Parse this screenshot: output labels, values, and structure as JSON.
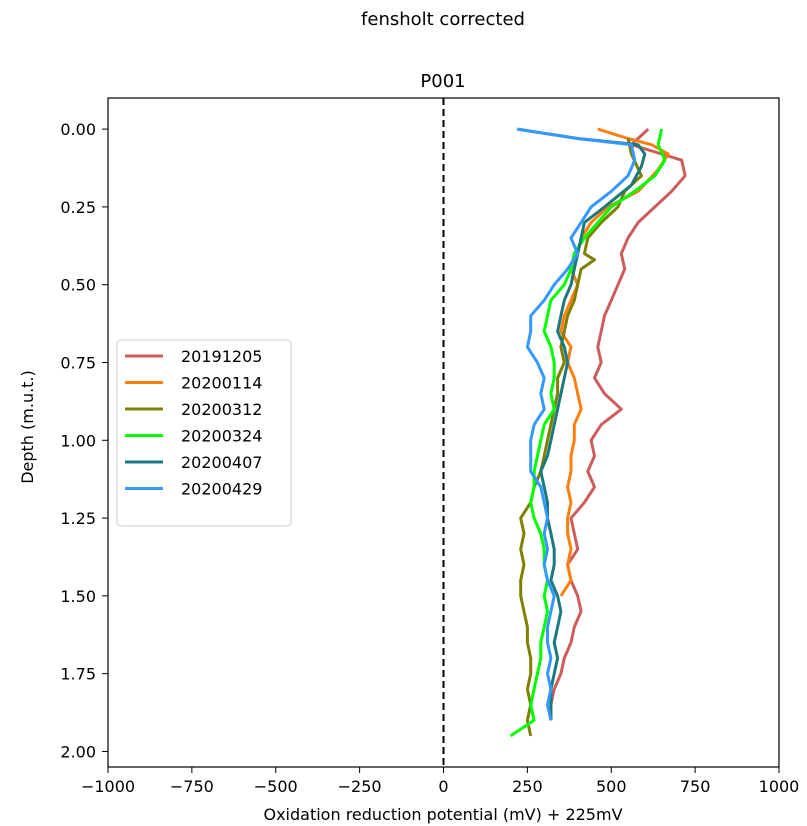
{
  "figure": {
    "suptitle": "fensholt corrected"
  },
  "chart_data": {
    "type": "line",
    "title": "P001",
    "xlabel": "Oxidation reduction potential (mV) + 225mV",
    "ylabel": "Depth (m.u.t.)",
    "xlim": [
      -1000,
      1000
    ],
    "ylim": [
      2.05,
      -0.1
    ],
    "y_inverted": true,
    "xticks": [
      -1000,
      -750,
      -500,
      -250,
      0,
      250,
      500,
      750,
      1000
    ],
    "xtick_labels": [
      "−1000",
      "−750",
      "−500",
      "−250",
      "0",
      "250",
      "500",
      "750",
      "1000"
    ],
    "yticks": [
      0.0,
      0.25,
      0.5,
      0.75,
      1.0,
      1.25,
      1.5,
      1.75,
      2.0
    ],
    "ytick_labels": [
      "0.00",
      "0.25",
      "0.50",
      "0.75",
      "1.00",
      "1.25",
      "1.50",
      "1.75",
      "2.00"
    ],
    "grid": false,
    "legend_position": "center-left",
    "reference_line": {
      "x": 0,
      "style": "dashed",
      "color": "#000000"
    },
    "series": [
      {
        "name": "20191205",
        "color": "#cd5c5c",
        "points": [
          [
            610,
            0.0
          ],
          [
            560,
            0.05
          ],
          [
            650,
            0.08
          ],
          [
            710,
            0.1
          ],
          [
            720,
            0.15
          ],
          [
            680,
            0.2
          ],
          [
            630,
            0.25
          ],
          [
            580,
            0.3
          ],
          [
            550,
            0.35
          ],
          [
            530,
            0.4
          ],
          [
            540,
            0.45
          ],
          [
            520,
            0.5
          ],
          [
            500,
            0.55
          ],
          [
            480,
            0.6
          ],
          [
            470,
            0.65
          ],
          [
            460,
            0.7
          ],
          [
            470,
            0.75
          ],
          [
            450,
            0.8
          ],
          [
            480,
            0.85
          ],
          [
            530,
            0.9
          ],
          [
            470,
            0.95
          ],
          [
            440,
            1.0
          ],
          [
            450,
            1.05
          ],
          [
            430,
            1.1
          ],
          [
            450,
            1.15
          ],
          [
            420,
            1.2
          ],
          [
            380,
            1.25
          ],
          [
            390,
            1.3
          ],
          [
            400,
            1.35
          ],
          [
            370,
            1.4
          ],
          [
            380,
            1.45
          ],
          [
            400,
            1.5
          ],
          [
            410,
            1.55
          ],
          [
            390,
            1.6
          ],
          [
            380,
            1.65
          ],
          [
            360,
            1.7
          ],
          [
            350,
            1.75
          ],
          [
            330,
            1.8
          ],
          [
            320,
            1.85
          ],
          [
            320,
            1.9
          ]
        ]
      },
      {
        "name": "20200114",
        "color": "#ff7f0e",
        "points": [
          [
            460,
            0.0
          ],
          [
            550,
            0.03
          ],
          [
            620,
            0.05
          ],
          [
            670,
            0.08
          ],
          [
            640,
            0.13
          ],
          [
            580,
            0.2
          ],
          [
            490,
            0.25
          ],
          [
            440,
            0.3
          ],
          [
            410,
            0.35
          ],
          [
            400,
            0.4
          ],
          [
            380,
            0.45
          ],
          [
            400,
            0.5
          ],
          [
            380,
            0.55
          ],
          [
            360,
            0.6
          ],
          [
            350,
            0.65
          ],
          [
            380,
            0.7
          ],
          [
            370,
            0.75
          ],
          [
            390,
            0.8
          ],
          [
            400,
            0.85
          ],
          [
            410,
            0.9
          ],
          [
            390,
            0.95
          ],
          [
            390,
            1.0
          ],
          [
            380,
            1.05
          ],
          [
            380,
            1.1
          ],
          [
            370,
            1.15
          ],
          [
            380,
            1.2
          ],
          [
            370,
            1.25
          ],
          [
            370,
            1.3
          ],
          [
            380,
            1.35
          ],
          [
            370,
            1.4
          ],
          [
            380,
            1.45
          ],
          [
            350,
            1.5
          ]
        ]
      },
      {
        "name": "20200312",
        "color": "#808000",
        "points": [
          [
            550,
            0.03
          ],
          [
            560,
            0.08
          ],
          [
            590,
            0.15
          ],
          [
            540,
            0.2
          ],
          [
            520,
            0.25
          ],
          [
            470,
            0.3
          ],
          [
            430,
            0.35
          ],
          [
            420,
            0.4
          ],
          [
            450,
            0.42
          ],
          [
            410,
            0.45
          ],
          [
            400,
            0.5
          ],
          [
            390,
            0.55
          ],
          [
            370,
            0.6
          ],
          [
            360,
            0.65
          ],
          [
            350,
            0.7
          ],
          [
            360,
            0.75
          ],
          [
            340,
            0.8
          ],
          [
            340,
            0.85
          ],
          [
            330,
            0.9
          ],
          [
            320,
            0.95
          ],
          [
            310,
            1.0
          ],
          [
            300,
            1.05
          ],
          [
            290,
            1.1
          ],
          [
            270,
            1.15
          ],
          [
            260,
            1.2
          ],
          [
            230,
            1.25
          ],
          [
            240,
            1.3
          ],
          [
            230,
            1.35
          ],
          [
            240,
            1.4
          ],
          [
            230,
            1.45
          ],
          [
            230,
            1.5
          ],
          [
            240,
            1.55
          ],
          [
            250,
            1.6
          ],
          [
            250,
            1.65
          ],
          [
            260,
            1.7
          ],
          [
            260,
            1.75
          ],
          [
            250,
            1.8
          ],
          [
            260,
            1.85
          ],
          [
            250,
            1.9
          ],
          [
            260,
            1.95
          ]
        ]
      },
      {
        "name": "20200324",
        "color": "#00ff00",
        "points": [
          [
            650,
            0.0
          ],
          [
            640,
            0.05
          ],
          [
            660,
            0.1
          ],
          [
            630,
            0.15
          ],
          [
            570,
            0.2
          ],
          [
            500,
            0.25
          ],
          [
            460,
            0.3
          ],
          [
            420,
            0.35
          ],
          [
            390,
            0.4
          ],
          [
            380,
            0.45
          ],
          [
            360,
            0.5
          ],
          [
            320,
            0.55
          ],
          [
            310,
            0.6
          ],
          [
            300,
            0.65
          ],
          [
            320,
            0.7
          ],
          [
            330,
            0.75
          ],
          [
            330,
            0.8
          ],
          [
            320,
            0.85
          ],
          [
            330,
            0.9
          ],
          [
            300,
            0.95
          ],
          [
            290,
            1.0
          ],
          [
            280,
            1.05
          ],
          [
            270,
            1.1
          ],
          [
            270,
            1.15
          ],
          [
            260,
            1.2
          ],
          [
            270,
            1.25
          ],
          [
            290,
            1.3
          ],
          [
            300,
            1.35
          ],
          [
            300,
            1.4
          ],
          [
            310,
            1.45
          ],
          [
            300,
            1.5
          ],
          [
            310,
            1.55
          ],
          [
            300,
            1.6
          ],
          [
            290,
            1.65
          ],
          [
            290,
            1.7
          ],
          [
            280,
            1.75
          ],
          [
            270,
            1.8
          ],
          [
            260,
            1.85
          ],
          [
            270,
            1.9
          ],
          [
            200,
            1.95
          ]
        ]
      },
      {
        "name": "20200407",
        "color": "#1a7a80",
        "points": [
          [
            220,
            0.0
          ],
          [
            400,
            0.03
          ],
          [
            580,
            0.05
          ],
          [
            600,
            0.08
          ],
          [
            590,
            0.12
          ],
          [
            560,
            0.18
          ],
          [
            480,
            0.25
          ],
          [
            420,
            0.3
          ],
          [
            410,
            0.35
          ],
          [
            400,
            0.4
          ],
          [
            390,
            0.45
          ],
          [
            380,
            0.5
          ],
          [
            360,
            0.55
          ],
          [
            350,
            0.6
          ],
          [
            340,
            0.65
          ],
          [
            360,
            0.7
          ],
          [
            370,
            0.75
          ],
          [
            360,
            0.8
          ],
          [
            350,
            0.85
          ],
          [
            340,
            0.9
          ],
          [
            330,
            0.95
          ],
          [
            320,
            1.0
          ],
          [
            310,
            1.05
          ],
          [
            290,
            1.1
          ],
          [
            300,
            1.15
          ],
          [
            310,
            1.2
          ],
          [
            310,
            1.25
          ],
          [
            320,
            1.3
          ],
          [
            330,
            1.35
          ],
          [
            330,
            1.4
          ],
          [
            320,
            1.45
          ],
          [
            340,
            1.5
          ],
          [
            350,
            1.55
          ],
          [
            340,
            1.6
          ],
          [
            330,
            1.65
          ],
          [
            340,
            1.7
          ],
          [
            330,
            1.75
          ],
          [
            320,
            1.8
          ],
          [
            320,
            1.85
          ],
          [
            320,
            1.9
          ]
        ]
      },
      {
        "name": "20200429",
        "color": "#3399ff",
        "points": [
          [
            220,
            0.0
          ],
          [
            400,
            0.03
          ],
          [
            560,
            0.05
          ],
          [
            570,
            0.1
          ],
          [
            550,
            0.15
          ],
          [
            500,
            0.2
          ],
          [
            440,
            0.25
          ],
          [
            410,
            0.3
          ],
          [
            380,
            0.35
          ],
          [
            400,
            0.4
          ],
          [
            370,
            0.45
          ],
          [
            330,
            0.5
          ],
          [
            300,
            0.55
          ],
          [
            260,
            0.6
          ],
          [
            260,
            0.65
          ],
          [
            250,
            0.7
          ],
          [
            280,
            0.75
          ],
          [
            300,
            0.8
          ],
          [
            290,
            0.85
          ],
          [
            300,
            0.9
          ],
          [
            270,
            0.95
          ],
          [
            260,
            1.0
          ],
          [
            260,
            1.05
          ],
          [
            260,
            1.1
          ],
          [
            290,
            1.15
          ],
          [
            300,
            1.2
          ],
          [
            310,
            1.25
          ],
          [
            300,
            1.3
          ],
          [
            310,
            1.35
          ],
          [
            300,
            1.4
          ],
          [
            310,
            1.45
          ],
          [
            330,
            1.5
          ],
          [
            320,
            1.55
          ],
          [
            310,
            1.6
          ],
          [
            310,
            1.65
          ],
          [
            320,
            1.7
          ],
          [
            310,
            1.75
          ],
          [
            320,
            1.8
          ],
          [
            310,
            1.85
          ],
          [
            320,
            1.9
          ]
        ]
      }
    ]
  }
}
